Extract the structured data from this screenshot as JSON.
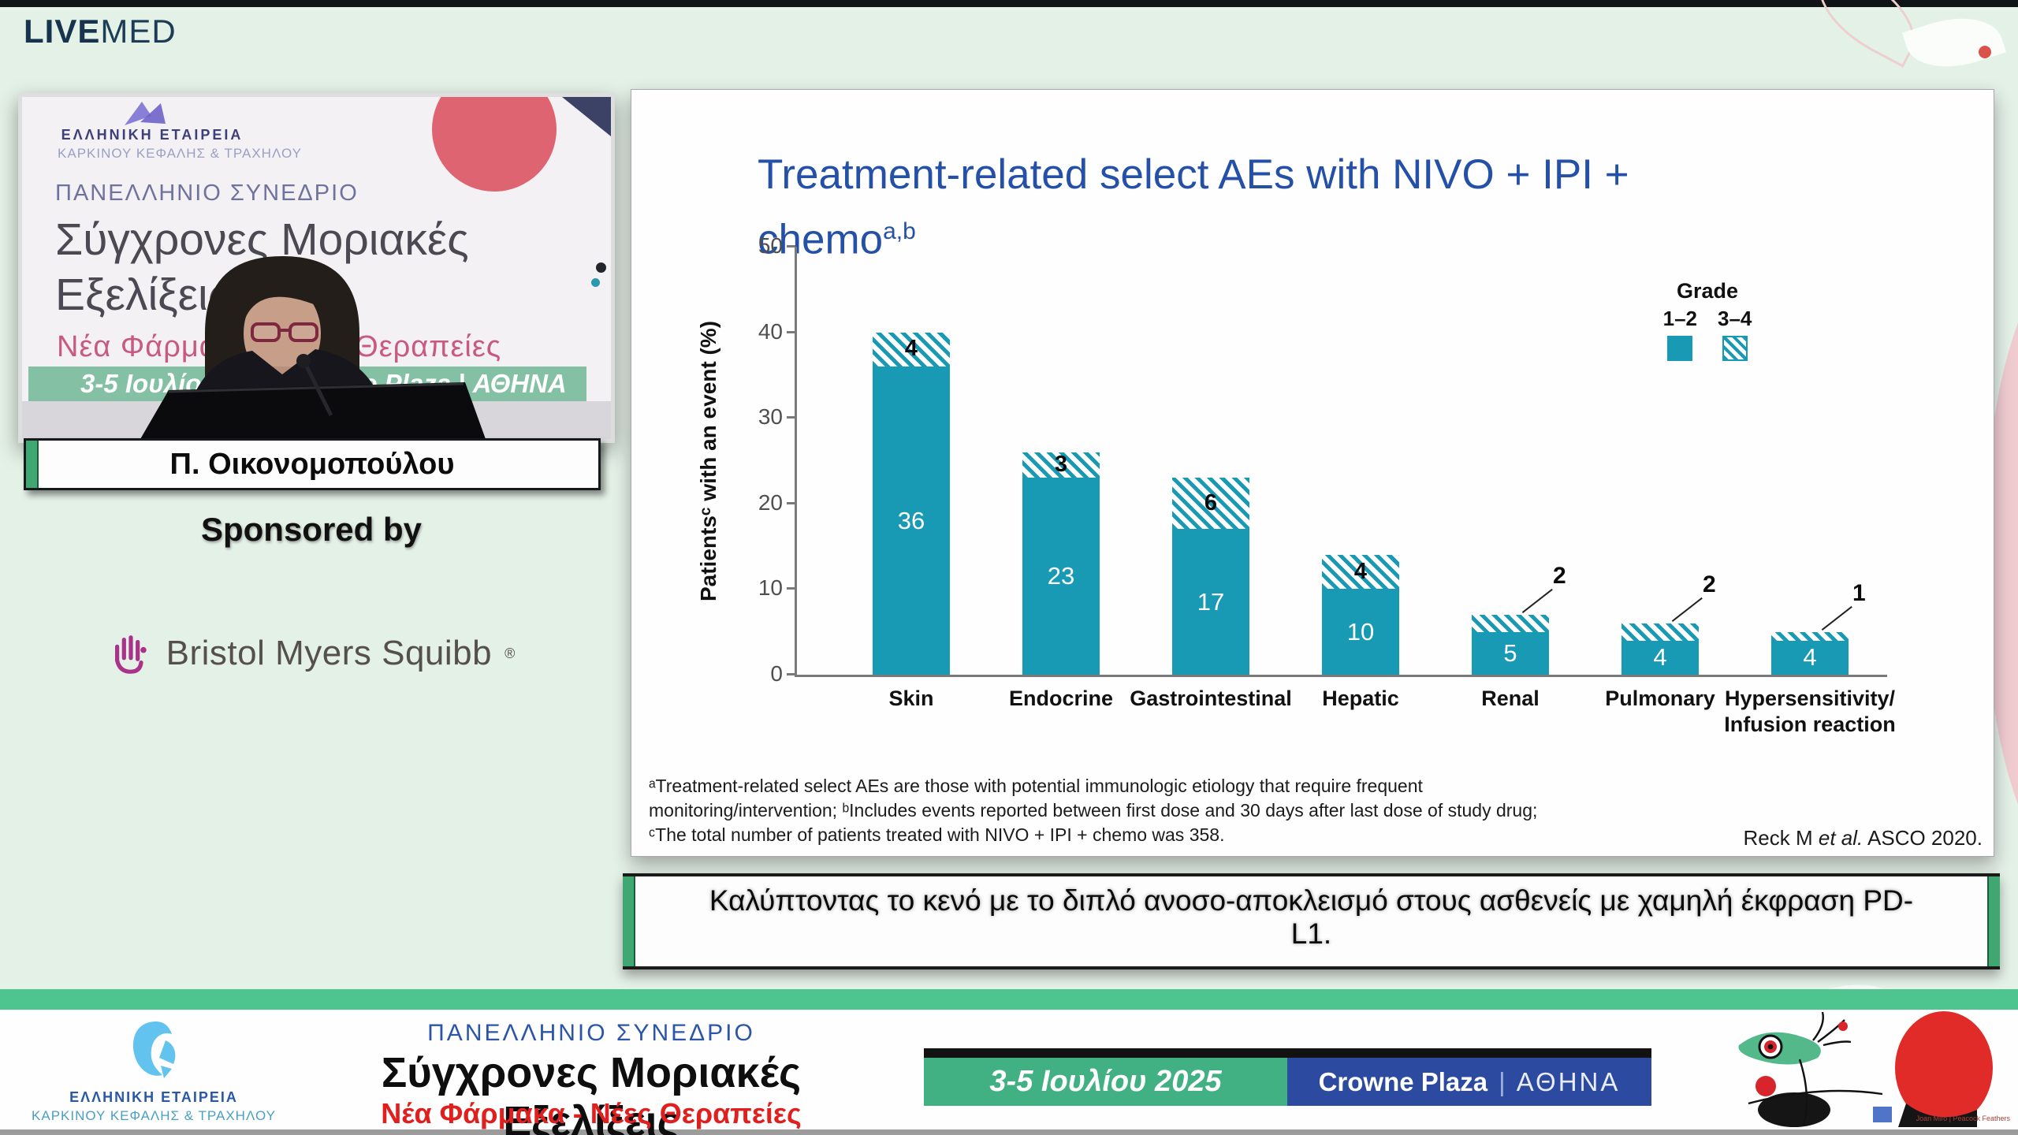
{
  "header": {
    "logo_live": "LIVE",
    "logo_med": "MED"
  },
  "video": {
    "poster": {
      "org_line1": "ΕΛΛΗΝΙΚΗ ΕΤΑΙΡΕΙΑ",
      "org_line2": "ΚΑΡΚΙΝΟΥ ΚΕΦΑΛΗΣ & ΤΡΑΧΗΛΟΥ",
      "congress": "ΠΑΝΕΛΛΗΝΙΟ ΣΥΝΕΔΡΙΟ",
      "title_line1": "Σύγχρονες Μοριακές",
      "title_line2": "Εξελίξεις",
      "subtitle": "Νέα Φάρμακα - Νέες Θεραπείες",
      "band_left": "3-5 Ιουλίου 2025",
      "band_right": "Crowne Plaza | ΑΘΗΝΑ"
    },
    "speaker_name": "Π. Οικονομοπούλου"
  },
  "sponsor": {
    "label": "Sponsored by",
    "name": "Bristol Myers Squibb",
    "registered": "®"
  },
  "slide": {
    "title_line1": "Treatment-related select AEs with NIVO + IPI +",
    "title_line2_base": "chemo",
    "title_line2_sup": "a,b",
    "footnotes": [
      "ᵃTreatment-related select AEs are those with potential immunologic etiology that require frequent",
      "monitoring/intervention; ᵇIncludes events reported between first dose and 30 days after last dose of study drug;",
      "ᶜThe total number of patients treated with NIVO + IPI + chemo was 358."
    ],
    "source_pre": "Reck M ",
    "source_italic": "et al.",
    "source_post": " ASCO 2020."
  },
  "chart_data": {
    "type": "bar",
    "stacked": true,
    "title": "Treatment-related select AEs with NIVO + IPI + chemo(a,b)",
    "ylabel": "Patientsᶜ with an event (%)",
    "ylim": [
      0,
      50
    ],
    "yticks": [
      0,
      10,
      20,
      30,
      40,
      50
    ],
    "grid": false,
    "categories": [
      "Skin",
      "Endocrine",
      "Gastrointestinal",
      "Hepatic",
      "Renal",
      "Pulmonary",
      "Hypersensitivity/\nInfusion reaction"
    ],
    "series": [
      {
        "name": "Grade 1–2",
        "style": "solid",
        "color": "#1899b4",
        "values": [
          36,
          23,
          17,
          10,
          5,
          4,
          4
        ]
      },
      {
        "name": "Grade 3–4",
        "style": "hatched",
        "color": "#1899b4",
        "values": [
          4,
          3,
          6,
          4,
          2,
          2,
          1
        ],
        "callout": [
          false,
          false,
          false,
          false,
          true,
          true,
          true
        ]
      }
    ],
    "totals": [
      40,
      26,
      23,
      14,
      7,
      6,
      5
    ],
    "legend": {
      "title": "Grade",
      "items": [
        "1–2",
        "3–4"
      ],
      "position": "top-right"
    }
  },
  "caption": {
    "line1": "Καλύπτοντας το κενό με το διπλό ανοσο-αποκλεισμό στους ασθενείς με χαμηλή έκφραση PD-",
    "line2": "L1."
  },
  "footer": {
    "org_line1": "ΕΛΛΗΝΙΚΗ ΕΤΑΙΡΕΙΑ",
    "org_line2": "ΚΑΡΚΙΝΟΥ ΚΕΦΑΛΗΣ & ΤΡΑΧΗΛΟΥ",
    "congress": "ΠΑΝΕΛΛΗΝΙΟ ΣΥΝΕΔΡΙΟ",
    "title": "Σύγχρονες Μοριακές Εξελίξεις",
    "subtitle": "Νέα Φάρμακα - Νέες Θεραπείες",
    "date": "3-5 Ιουλίου 2025",
    "venue_bold": "Crowne Plaza",
    "venue_sep": "|",
    "venue_city": "ΑΘΗΝΑ",
    "artwork_credit": "Joan Miro | Peacock Feathers"
  },
  "colors": {
    "teal_bar": "#1899b4",
    "title_blue": "#2450a8",
    "mint_bg": "#e4f1e7",
    "footer_green": "#4ec48f",
    "date_green": "#41b183",
    "venue_navy": "#2b4aa0",
    "accent_red": "#e0201f",
    "plate_green": "#3fa771",
    "bms_magenta": "#a9328a"
  }
}
